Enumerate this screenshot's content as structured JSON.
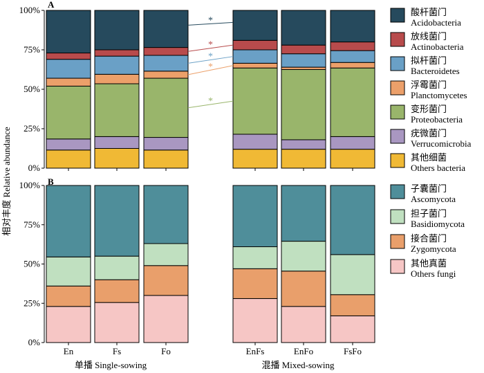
{
  "chart_data": [
    {
      "type": "bar",
      "stacked": true,
      "panel": "A",
      "categories": [
        "En",
        "Fs",
        "Fo",
        "EnFs",
        "EnFo",
        "FsFo"
      ],
      "ylabel": "相对丰度 Relative abundance",
      "ylim": [
        0,
        100
      ],
      "yticks": [
        "0%",
        "25%",
        "50%",
        "75%",
        "100%"
      ],
      "legend_position": "right",
      "series": [
        {
          "cn": "其他细菌",
          "name": "Others bacteria",
          "color": "#f0b935",
          "values": [
            11.5,
            12.5,
            11.5,
            12.0,
            12.0,
            12.0
          ]
        },
        {
          "cn": "疣微菌门",
          "name": "Verrucomicrobia",
          "color": "#a997c1",
          "values": [
            7.0,
            7.5,
            8.0,
            9.5,
            6.0,
            8.0
          ]
        },
        {
          "cn": "变形菌门",
          "name": "Proteobacteria",
          "color": "#99b56b",
          "values": [
            33.5,
            33.5,
            37.5,
            42.0,
            44.5,
            43.5
          ]
        },
        {
          "cn": "浮霉菌门",
          "name": "Planctomycetes",
          "color": "#eca06a",
          "values": [
            5.0,
            6.0,
            4.5,
            3.0,
            1.5,
            3.5
          ]
        },
        {
          "cn": "拟杆菌门",
          "name": "Bacteroidetes",
          "color": "#6aa0c6",
          "values": [
            12.0,
            11.5,
            10.0,
            8.5,
            8.5,
            7.5
          ]
        },
        {
          "cn": "放线菌门",
          "name": "Actinobacteria",
          "color": "#b84b4c",
          "values": [
            4.0,
            4.0,
            5.0,
            6.0,
            5.5,
            5.5
          ]
        },
        {
          "cn": "酸杆菌门",
          "name": "Acidobacteria",
          "color": "#264a5d",
          "values": [
            27.0,
            25.0,
            23.5,
            19.0,
            22.0,
            20.0
          ]
        }
      ],
      "annotations": [
        "*",
        "*",
        "*",
        "*",
        "*"
      ]
    },
    {
      "type": "bar",
      "stacked": true,
      "panel": "B",
      "categories": [
        "En",
        "Fs",
        "Fo",
        "EnFs",
        "EnFo",
        "FsFo"
      ],
      "ylim": [
        0,
        100
      ],
      "yticks": [
        "0%",
        "25%",
        "50%",
        "75%",
        "100%"
      ],
      "legend_position": "right",
      "series": [
        {
          "cn": "其他真菌",
          "name": "Others fungi",
          "color": "#f6c6c5",
          "values": [
            23.0,
            25.5,
            30.0,
            28.0,
            23.0,
            17.0
          ]
        },
        {
          "cn": "接合菌门",
          "name": "Zygomycota",
          "color": "#e99f6b",
          "values": [
            13.0,
            14.5,
            19.0,
            19.0,
            22.5,
            13.5
          ]
        },
        {
          "cn": "担子菌门",
          "name": "Basidiomycota",
          "color": "#c0e0c0",
          "values": [
            18.5,
            15.0,
            14.0,
            14.0,
            19.0,
            25.5
          ]
        },
        {
          "cn": "子囊菌门",
          "name": "Ascomycota",
          "color": "#4f8e9a",
          "values": [
            45.5,
            45.0,
            37.0,
            39.0,
            35.5,
            44.0
          ]
        }
      ]
    }
  ],
  "groups": [
    {
      "label": "单播 Single-sowing"
    },
    {
      "label": "混播 Mixed-sowing"
    }
  ]
}
